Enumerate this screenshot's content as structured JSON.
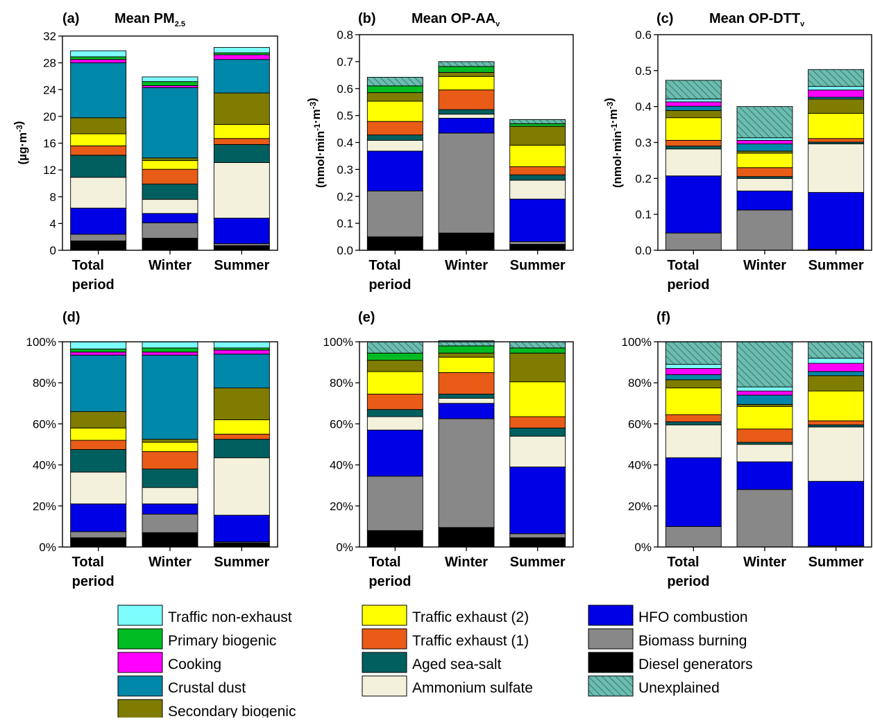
{
  "colors": {
    "diesel": "#000000",
    "biomass": "#888888",
    "hfo": "#0000e6",
    "ammsulf": "#f3f1dc",
    "seasalt": "#005f5f",
    "te1": "#e85c18",
    "te2": "#ffff00",
    "secbio": "#7f7c00",
    "crustal": "#0088aa",
    "cooking": "#ff00ff",
    "primbio": "#00bb22",
    "nonexh": "#7dfdfd",
    "unexplained_bg": "#6cbcaf",
    "unexplained_hatch": "#2f7a6f"
  },
  "categories": [
    "Total period",
    "Winter",
    "Summer"
  ],
  "category_lines": [
    [
      "Total",
      "period"
    ],
    [
      "Winter"
    ],
    [
      "Summer"
    ]
  ],
  "legend": [
    {
      "key": "nonexh",
      "label": "Traffic non-exhaust"
    },
    {
      "key": "primbio",
      "label": "Primary biogenic"
    },
    {
      "key": "cooking",
      "label": "Cooking"
    },
    {
      "key": "crustal",
      "label": "Crustal dust"
    },
    {
      "key": "secbio",
      "label": "Secondary biogenic"
    },
    {
      "key": "te2",
      "label": "Traffic exhaust (2)"
    },
    {
      "key": "te1",
      "label": "Traffic exhaust (1)"
    },
    {
      "key": "seasalt",
      "label": "Aged sea-salt"
    },
    {
      "key": "ammsulf",
      "label": "Ammonium sulfate"
    },
    {
      "key": "hfo",
      "label": "HFO combustion"
    },
    {
      "key": "biomass",
      "label": "Biomass burning"
    },
    {
      "key": "diesel",
      "label": "Diesel generators"
    },
    {
      "key": "unexplained",
      "label": "Unexplained"
    }
  ],
  "chart_data": [
    {
      "type": "bar",
      "stacked": true,
      "panel": "(a)",
      "title": "Mean PM",
      "title_sub": "2.5",
      "ylabel": "(µg·m-3)",
      "ylim": [
        0,
        32
      ],
      "yticks": [
        "0",
        "4",
        "8",
        "12",
        "16",
        "20",
        "24",
        "28",
        "32"
      ],
      "categories": [
        "Total period",
        "Winter",
        "Summer"
      ],
      "series": [
        {
          "key": "diesel",
          "values": [
            1.4,
            1.8,
            0.7
          ]
        },
        {
          "key": "biomass",
          "values": [
            1.0,
            2.3,
            0.3
          ]
        },
        {
          "key": "hfo",
          "values": [
            3.9,
            1.4,
            3.8
          ]
        },
        {
          "key": "ammsulf",
          "values": [
            4.6,
            2.1,
            8.3
          ]
        },
        {
          "key": "seasalt",
          "values": [
            3.3,
            2.3,
            2.7
          ]
        },
        {
          "key": "te1",
          "values": [
            1.4,
            2.2,
            0.9
          ]
        },
        {
          "key": "te2",
          "values": [
            1.8,
            1.3,
            2.1
          ]
        },
        {
          "key": "secbio",
          "values": [
            2.4,
            0.4,
            4.7
          ]
        },
        {
          "key": "crustal",
          "values": [
            8.2,
            10.5,
            5.0
          ]
        },
        {
          "key": "cooking",
          "values": [
            0.5,
            0.3,
            0.7
          ]
        },
        {
          "key": "primbio",
          "values": [
            0.4,
            0.6,
            0.3
          ]
        },
        {
          "key": "nonexh",
          "values": [
            0.9,
            0.7,
            0.8
          ]
        }
      ]
    },
    {
      "type": "bar",
      "stacked": true,
      "panel": "(b)",
      "title": "Mean OP-AA",
      "title_sub": "v",
      "ylabel": "(nmol·min-1·m-3)",
      "ylim": [
        0,
        0.8
      ],
      "yticks": [
        "0.0",
        "0.1",
        "0.2",
        "0.3",
        "0.4",
        "0.5",
        "0.6",
        "0.7",
        "0.8"
      ],
      "categories": [
        "Total period",
        "Winter",
        "Summer"
      ],
      "series": [
        {
          "key": "diesel",
          "values": [
            0.05,
            0.064,
            0.022
          ]
        },
        {
          "key": "biomass",
          "values": [
            0.17,
            0.371,
            0.01
          ]
        },
        {
          "key": "hfo",
          "values": [
            0.148,
            0.055,
            0.158
          ]
        },
        {
          "key": "ammsulf",
          "values": [
            0.04,
            0.015,
            0.07
          ]
        },
        {
          "key": "seasalt",
          "values": [
            0.02,
            0.017,
            0.02
          ]
        },
        {
          "key": "te1",
          "values": [
            0.05,
            0.073,
            0.03
          ]
        },
        {
          "key": "te2",
          "values": [
            0.075,
            0.05,
            0.08
          ]
        },
        {
          "key": "secbio",
          "values": [
            0.032,
            0.015,
            0.07
          ]
        },
        {
          "key": "crustal",
          "values": [
            0,
            0,
            0
          ]
        },
        {
          "key": "cooking",
          "values": [
            0,
            0,
            0
          ]
        },
        {
          "key": "primbio",
          "values": [
            0.025,
            0.022,
            0.01
          ]
        },
        {
          "key": "nonexh",
          "values": [
            0,
            0,
            0
          ]
        },
        {
          "key": "unexplained",
          "values": [
            0.032,
            0.018,
            0.015
          ]
        }
      ]
    },
    {
      "type": "bar",
      "stacked": true,
      "panel": "(c)",
      "title": "Mean OP-DTT",
      "title_sub": "v",
      "ylabel": "(nmol·min-1·m-3)",
      "ylim": [
        0,
        0.6
      ],
      "yticks": [
        "0.0",
        "0.1",
        "0.2",
        "0.3",
        "0.4",
        "0.5",
        "0.6"
      ],
      "categories": [
        "Total period",
        "Winter",
        "Summer"
      ],
      "series": [
        {
          "key": "diesel",
          "values": [
            0,
            0,
            0.002
          ]
        },
        {
          "key": "biomass",
          "values": [
            0.048,
            0.112,
            0.001
          ]
        },
        {
          "key": "hfo",
          "values": [
            0.159,
            0.053,
            0.158
          ]
        },
        {
          "key": "ammsulf",
          "values": [
            0.075,
            0.035,
            0.135
          ]
        },
        {
          "key": "seasalt",
          "values": [
            0.008,
            0.005,
            0.005
          ]
        },
        {
          "key": "te1",
          "values": [
            0.016,
            0.025,
            0.01
          ]
        },
        {
          "key": "te2",
          "values": [
            0.063,
            0.04,
            0.07
          ]
        },
        {
          "key": "secbio",
          "values": [
            0.02,
            0.006,
            0.04
          ]
        },
        {
          "key": "crustal",
          "values": [
            0.012,
            0.02,
            0.005
          ]
        },
        {
          "key": "cooking",
          "values": [
            0.012,
            0.01,
            0.02
          ]
        },
        {
          "key": "primbio",
          "values": [
            0,
            0,
            0
          ]
        },
        {
          "key": "nonexh",
          "values": [
            0.008,
            0.007,
            0.01
          ]
        },
        {
          "key": "unexplained",
          "values": [
            0.052,
            0.087,
            0.047
          ]
        }
      ]
    },
    {
      "type": "bar",
      "stacked": true,
      "percent": true,
      "panel": "(d)",
      "ylim": [
        0,
        100
      ],
      "yticks": [
        "0%",
        "20%",
        "40%",
        "60%",
        "80%",
        "100%"
      ],
      "categories": [
        "Total period",
        "Winter",
        "Summer"
      ],
      "series": [
        {
          "key": "diesel",
          "values": [
            4.5,
            7,
            2
          ]
        },
        {
          "key": "biomass",
          "values": [
            3,
            9,
            0.5
          ]
        },
        {
          "key": "hfo",
          "values": [
            13.5,
            5,
            13
          ]
        },
        {
          "key": "ammsulf",
          "values": [
            15.5,
            8,
            28
          ]
        },
        {
          "key": "seasalt",
          "values": [
            11,
            9,
            9
          ]
        },
        {
          "key": "te1",
          "values": [
            4.5,
            8.5,
            2.5
          ]
        },
        {
          "key": "te2",
          "values": [
            6,
            4.5,
            7
          ]
        },
        {
          "key": "secbio",
          "values": [
            8,
            1.5,
            15.5
          ]
        },
        {
          "key": "crustal",
          "values": [
            27.5,
            41,
            16.5
          ]
        },
        {
          "key": "cooking",
          "values": [
            1.5,
            1.5,
            2
          ]
        },
        {
          "key": "primbio",
          "values": [
            1.5,
            2,
            1
          ]
        },
        {
          "key": "nonexh",
          "values": [
            3.5,
            3,
            3
          ]
        }
      ]
    },
    {
      "type": "bar",
      "stacked": true,
      "percent": true,
      "panel": "(e)",
      "ylim": [
        0,
        100
      ],
      "yticks": [
        "0%",
        "20%",
        "40%",
        "60%",
        "80%",
        "100%"
      ],
      "categories": [
        "Total period",
        "Winter",
        "Summer"
      ],
      "series": [
        {
          "key": "diesel",
          "values": [
            8,
            9.5,
            4.5
          ]
        },
        {
          "key": "biomass",
          "values": [
            26.5,
            53,
            2
          ]
        },
        {
          "key": "hfo",
          "values": [
            22.5,
            7.5,
            32.5
          ]
        },
        {
          "key": "ammsulf",
          "values": [
            6.5,
            2.5,
            15
          ]
        },
        {
          "key": "seasalt",
          "values": [
            3.5,
            2,
            4
          ]
        },
        {
          "key": "te1",
          "values": [
            7.5,
            10.5,
            5.5
          ]
        },
        {
          "key": "te2",
          "values": [
            11,
            7.5,
            17
          ]
        },
        {
          "key": "secbio",
          "values": [
            5.5,
            2,
            14
          ]
        },
        {
          "key": "crustal",
          "values": [
            0,
            0,
            0
          ]
        },
        {
          "key": "cooking",
          "values": [
            0,
            0,
            0
          ]
        },
        {
          "key": "primbio",
          "values": [
            3.5,
            3.5,
            2.5
          ]
        },
        {
          "key": "nonexh",
          "values": [
            0,
            0,
            0
          ]
        },
        {
          "key": "unexplained",
          "values": [
            5.5,
            2.5,
            3
          ]
        }
      ]
    },
    {
      "type": "bar",
      "stacked": true,
      "percent": true,
      "panel": "(f)",
      "ylim": [
        0,
        100
      ],
      "yticks": [
        "0%",
        "20%",
        "40%",
        "60%",
        "80%",
        "100%"
      ],
      "categories": [
        "Total period",
        "Winter",
        "Summer"
      ],
      "series": [
        {
          "key": "diesel",
          "values": [
            0,
            0,
            0
          ]
        },
        {
          "key": "biomass",
          "values": [
            10,
            28,
            0.5
          ]
        },
        {
          "key": "hfo",
          "values": [
            33.5,
            13.5,
            31.5
          ]
        },
        {
          "key": "ammsulf",
          "values": [
            16,
            8.5,
            26.5
          ]
        },
        {
          "key": "seasalt",
          "values": [
            1.5,
            1,
            1
          ]
        },
        {
          "key": "te1",
          "values": [
            3.5,
            6.5,
            2
          ]
        },
        {
          "key": "te2",
          "values": [
            13,
            11,
            14.5
          ]
        },
        {
          "key": "secbio",
          "values": [
            4,
            1,
            7.5
          ]
        },
        {
          "key": "crustal",
          "values": [
            2.5,
            4.5,
            2
          ]
        },
        {
          "key": "cooking",
          "values": [
            3,
            2,
            4
          ]
        },
        {
          "key": "primbio",
          "values": [
            0,
            0,
            0
          ]
        },
        {
          "key": "nonexh",
          "values": [
            2,
            2,
            2.5
          ]
        },
        {
          "key": "unexplained",
          "values": [
            11,
            22,
            8
          ]
        }
      ]
    }
  ]
}
